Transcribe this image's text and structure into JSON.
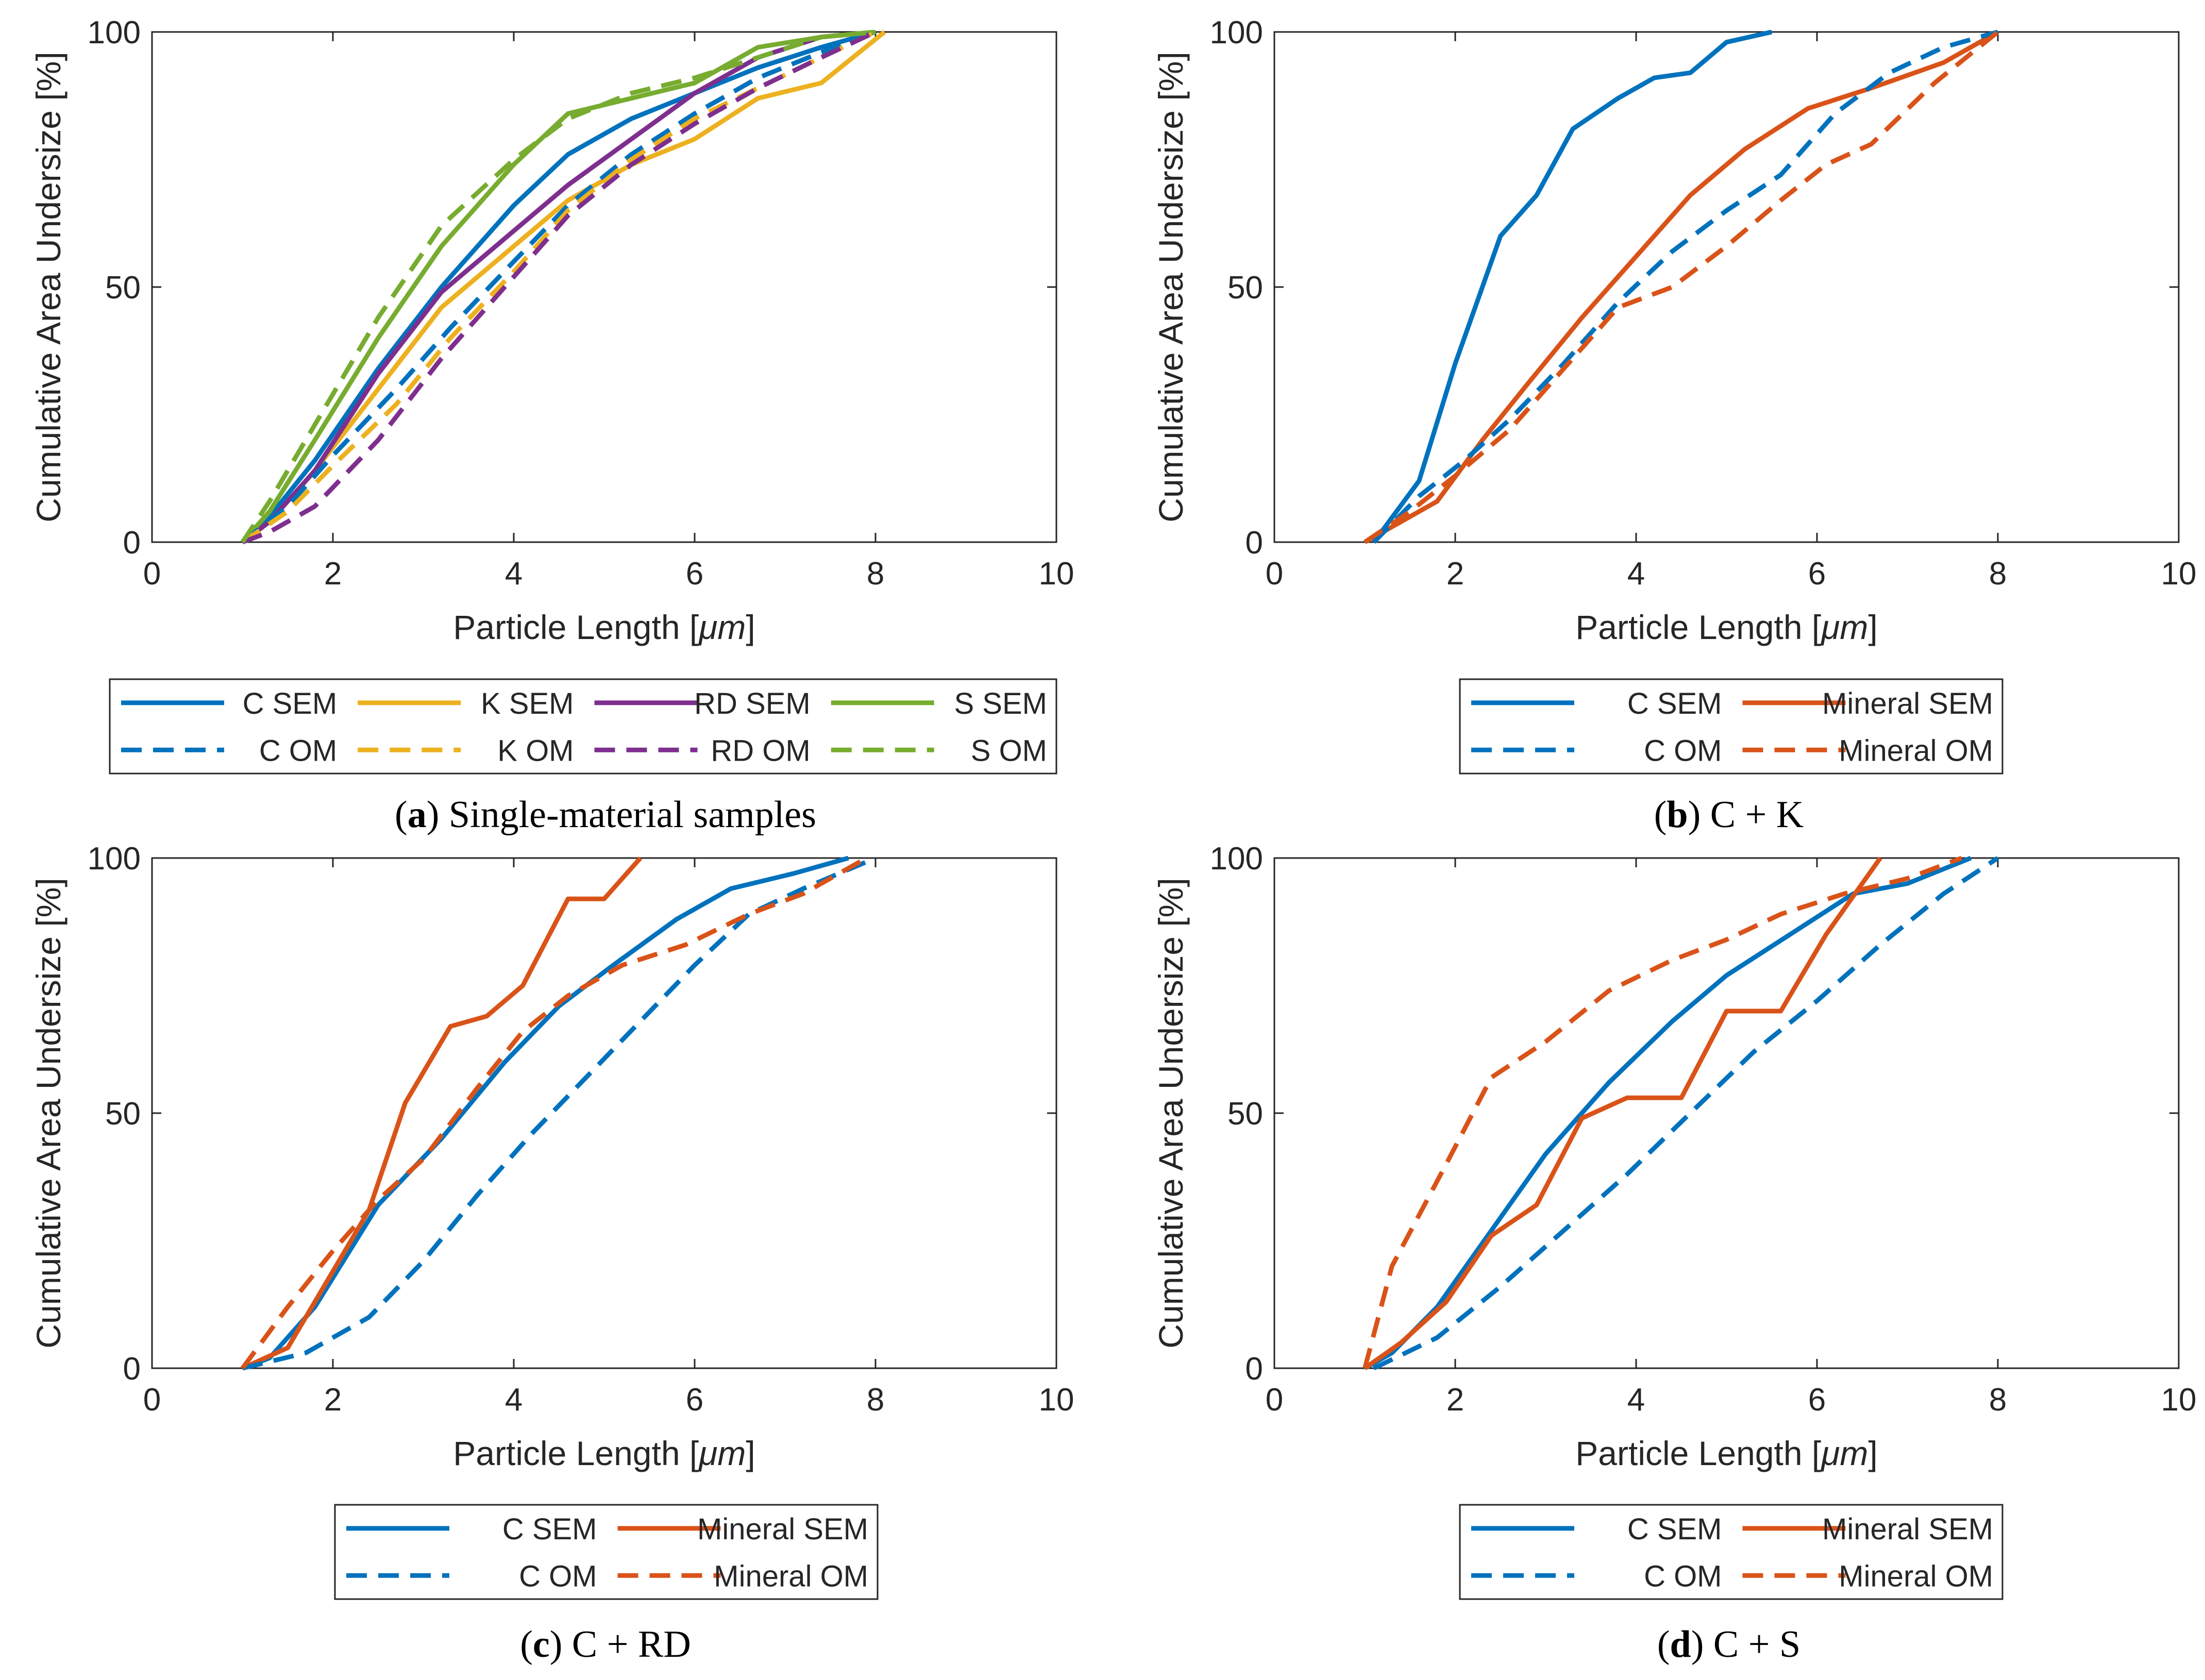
{
  "colors": {
    "C": "#0072bd",
    "K": "#edb120",
    "RD": "#7e2f8e",
    "S": "#77ac30",
    "Mineral": "#d95319",
    "axis": "#262626",
    "text": "#262626"
  },
  "chart_data": [
    {
      "id": "a",
      "type": "line",
      "caption_letter": "a",
      "caption_text": "Single-material samples",
      "xlabel_prefix": "Particle Length [",
      "xlabel_unit": "μm",
      "xlabel_suffix": "]",
      "ylabel": "Cumulative Area Undersize [%]",
      "xlim": [
        0,
        10
      ],
      "ylim": [
        0,
        100
      ],
      "xticks": [
        0,
        2,
        4,
        6,
        8,
        10
      ],
      "yticks": [
        0,
        50,
        100
      ],
      "grid": false,
      "legend_columns": 4,
      "legend_placement": "below",
      "series": [
        {
          "name": "C SEM",
          "color_key": "C",
          "dash": false,
          "x": [
            1.0,
            1.3,
            1.8,
            2.5,
            3.2,
            4.0,
            4.6,
            5.3,
            6.0,
            6.7,
            7.4,
            8.0
          ],
          "y": [
            0,
            5,
            16,
            34,
            50,
            66,
            76,
            83,
            88,
            93,
            97,
            100
          ]
        },
        {
          "name": "K SEM",
          "color_key": "K",
          "dash": false,
          "x": [
            1.0,
            1.3,
            1.8,
            2.5,
            3.2,
            4.0,
            4.6,
            5.3,
            6.0,
            6.7,
            7.4,
            8.1
          ],
          "y": [
            0,
            4,
            14,
            30,
            46,
            58,
            67,
            74,
            79,
            87,
            90,
            100
          ]
        },
        {
          "name": "RD SEM",
          "color_key": "RD",
          "dash": false,
          "x": [
            1.0,
            1.3,
            1.8,
            2.5,
            3.2,
            4.0,
            4.6,
            5.3,
            6.0,
            6.7,
            7.4,
            8.0
          ],
          "y": [
            0,
            4,
            14,
            33,
            49,
            61,
            70,
            79,
            88,
            95,
            99,
            100
          ]
        },
        {
          "name": "S SEM",
          "color_key": "S",
          "dash": false,
          "x": [
            1.0,
            1.3,
            1.8,
            2.5,
            3.2,
            4.0,
            4.6,
            5.3,
            6.0,
            6.7,
            7.4,
            8.0
          ],
          "y": [
            0,
            6,
            20,
            40,
            58,
            74,
            84,
            87,
            90,
            97,
            99,
            100
          ]
        },
        {
          "name": "C OM",
          "color_key": "C",
          "dash": true,
          "x": [
            1.0,
            1.5,
            2.0,
            2.7,
            3.3,
            4.0,
            4.6,
            5.3,
            6.0,
            6.7,
            7.4,
            8.0
          ],
          "y": [
            0,
            7,
            17,
            30,
            42,
            55,
            66,
            76,
            84,
            91,
            96,
            100
          ]
        },
        {
          "name": "K OM",
          "color_key": "K",
          "dash": true,
          "x": [
            1.0,
            1.5,
            2.0,
            2.7,
            3.3,
            4.0,
            4.6,
            5.3,
            6.0,
            6.7,
            7.4,
            8.0
          ],
          "y": [
            0,
            6,
            15,
            27,
            40,
            53,
            65,
            75,
            83,
            89,
            95,
            100
          ]
        },
        {
          "name": "RD OM",
          "color_key": "RD",
          "dash": true,
          "x": [
            1.0,
            1.3,
            1.8,
            2.5,
            3.2,
            4.0,
            4.6,
            5.3,
            6.0,
            6.7,
            7.4,
            8.0
          ],
          "y": [
            0,
            2,
            7,
            20,
            36,
            52,
            64,
            74,
            82,
            89,
            95,
            100
          ]
        },
        {
          "name": "S OM",
          "color_key": "S",
          "dash": true,
          "x": [
            1.0,
            1.3,
            1.8,
            2.5,
            3.2,
            4.0,
            4.6,
            5.3,
            6.0,
            6.7,
            7.4,
            8.0
          ],
          "y": [
            0,
            8,
            23,
            44,
            62,
            75,
            83,
            88,
            91,
            95,
            99,
            100
          ]
        }
      ]
    },
    {
      "id": "b",
      "type": "line",
      "caption_letter": "b",
      "caption_text": "C + K",
      "xlabel_prefix": "Particle Length [",
      "xlabel_unit": "μm",
      "xlabel_suffix": "]",
      "ylabel": "Cumulative Area Undersize [%]",
      "xlim": [
        0,
        10
      ],
      "ylim": [
        0,
        100
      ],
      "xticks": [
        0,
        2,
        4,
        6,
        8,
        10
      ],
      "yticks": [
        0,
        50,
        100
      ],
      "grid": false,
      "legend_columns": 2,
      "legend_placement": "below",
      "series": [
        {
          "name": "C SEM",
          "color_key": "C",
          "dash": false,
          "x": [
            1.1,
            1.6,
            2.0,
            2.5,
            2.9,
            3.3,
            3.8,
            4.2,
            4.6,
            5.0,
            5.5
          ],
          "y": [
            0,
            12,
            35,
            60,
            68,
            81,
            87,
            91,
            92,
            98,
            100
          ]
        },
        {
          "name": "Mineral SEM",
          "color_key": "Mineral",
          "dash": false,
          "x": [
            1.0,
            1.4,
            1.8,
            2.3,
            2.8,
            3.4,
            4.0,
            4.6,
            5.2,
            5.9,
            6.6,
            7.4,
            8.0
          ],
          "y": [
            0,
            4,
            8,
            20,
            31,
            44,
            56,
            68,
            77,
            85,
            89,
            94,
            100
          ]
        },
        {
          "name": "C OM",
          "color_key": "C",
          "dash": true,
          "x": [
            1.1,
            1.6,
            2.1,
            2.6,
            3.2,
            3.8,
            4.4,
            5.0,
            5.6,
            6.2,
            6.8,
            7.4,
            8.0
          ],
          "y": [
            0,
            9,
            16,
            24,
            35,
            47,
            57,
            65,
            72,
            84,
            92,
            97,
            100
          ]
        },
        {
          "name": "Mineral OM",
          "color_key": "Mineral",
          "dash": true,
          "x": [
            1.0,
            1.5,
            2.0,
            2.6,
            3.2,
            3.8,
            4.4,
            5.0,
            5.6,
            6.1,
            6.6,
            7.3,
            8.0
          ],
          "y": [
            0,
            6,
            13,
            22,
            34,
            46,
            50,
            58,
            67,
            74,
            78,
            90,
            100
          ]
        }
      ]
    },
    {
      "id": "c",
      "type": "line",
      "caption_letter": "c",
      "caption_text": "C + RD",
      "xlabel_prefix": "Particle Length [",
      "xlabel_unit": "μm",
      "xlabel_suffix": "]",
      "ylabel": "Cumulative Area Undersize [%]",
      "xlim": [
        0,
        10
      ],
      "ylim": [
        0,
        100
      ],
      "xticks": [
        0,
        2,
        4,
        6,
        8,
        10
      ],
      "yticks": [
        0,
        50,
        100
      ],
      "grid": false,
      "legend_columns": 2,
      "legend_placement": "below",
      "series": [
        {
          "name": "C SEM",
          "color_key": "C",
          "dash": false,
          "x": [
            1.0,
            1.3,
            1.8,
            2.5,
            3.2,
            3.9,
            4.5,
            5.1,
            5.8,
            6.4,
            7.1,
            7.7
          ],
          "y": [
            0,
            2,
            12,
            32,
            45,
            60,
            71,
            79,
            88,
            94,
            97,
            100
          ]
        },
        {
          "name": "Mineral SEM",
          "color_key": "Mineral",
          "dash": false,
          "x": [
            1.0,
            1.5,
            1.9,
            2.4,
            2.8,
            3.3,
            3.7,
            4.1,
            4.6,
            5.0,
            5.4
          ],
          "y": [
            0,
            4,
            16,
            31,
            52,
            67,
            69,
            75,
            92,
            92,
            100
          ]
        },
        {
          "name": "C OM",
          "color_key": "C",
          "dash": true,
          "x": [
            1.0,
            1.7,
            2.4,
            3.0,
            3.6,
            4.2,
            4.8,
            5.4,
            6.0,
            6.6,
            7.2,
            8.0
          ],
          "y": [
            0,
            3,
            10,
            21,
            34,
            46,
            57,
            68,
            79,
            89,
            94,
            100
          ]
        },
        {
          "name": "Mineral OM",
          "color_key": "Mineral",
          "dash": true,
          "x": [
            1.0,
            1.5,
            2.0,
            2.5,
            3.0,
            3.6,
            4.1,
            4.6,
            5.2,
            5.9,
            6.6,
            7.2,
            7.9
          ],
          "y": [
            0,
            12,
            23,
            33,
            41,
            55,
            66,
            73,
            79,
            83,
            89,
            93,
            100
          ]
        }
      ]
    },
    {
      "id": "d",
      "type": "line",
      "caption_letter": "d",
      "caption_text": "C + S",
      "xlabel_prefix": "Particle Length [",
      "xlabel_unit": "μm",
      "xlabel_suffix": "]",
      "ylabel": "Cumulative Area Undersize [%]",
      "xlim": [
        0,
        10
      ],
      "ylim": [
        0,
        100
      ],
      "xticks": [
        0,
        2,
        4,
        6,
        8,
        10
      ],
      "yticks": [
        0,
        50,
        100
      ],
      "grid": false,
      "legend_columns": 2,
      "legend_placement": "below",
      "series": [
        {
          "name": "C SEM",
          "color_key": "C",
          "dash": false,
          "x": [
            1.0,
            1.3,
            1.8,
            2.4,
            3.0,
            3.7,
            4.4,
            5.0,
            5.7,
            6.4,
            7.0,
            7.7
          ],
          "y": [
            0,
            3,
            12,
            27,
            42,
            56,
            68,
            77,
            85,
            93,
            95,
            100
          ]
        },
        {
          "name": "Mineral SEM",
          "color_key": "Mineral",
          "dash": false,
          "x": [
            1.0,
            1.4,
            1.9,
            2.4,
            2.9,
            3.4,
            3.9,
            4.5,
            5.0,
            5.6,
            6.1,
            6.7
          ],
          "y": [
            0,
            5,
            13,
            26,
            32,
            49,
            53,
            53,
            70,
            70,
            85,
            100
          ]
        },
        {
          "name": "C OM",
          "color_key": "C",
          "dash": true,
          "x": [
            1.1,
            1.8,
            2.5,
            3.2,
            3.9,
            4.6,
            5.3,
            6.0,
            6.7,
            7.4,
            8.0
          ],
          "y": [
            0,
            6,
            16,
            27,
            38,
            50,
            62,
            72,
            83,
            93,
            100
          ]
        },
        {
          "name": "Mineral OM",
          "color_key": "Mineral",
          "dash": true,
          "x": [
            1.0,
            1.3,
            1.9,
            2.4,
            3.0,
            3.7,
            4.4,
            5.0,
            5.6,
            6.3,
            7.0,
            7.6
          ],
          "y": [
            0,
            20,
            40,
            57,
            64,
            74,
            80,
            84,
            89,
            93,
            96,
            100
          ]
        }
      ]
    }
  ]
}
